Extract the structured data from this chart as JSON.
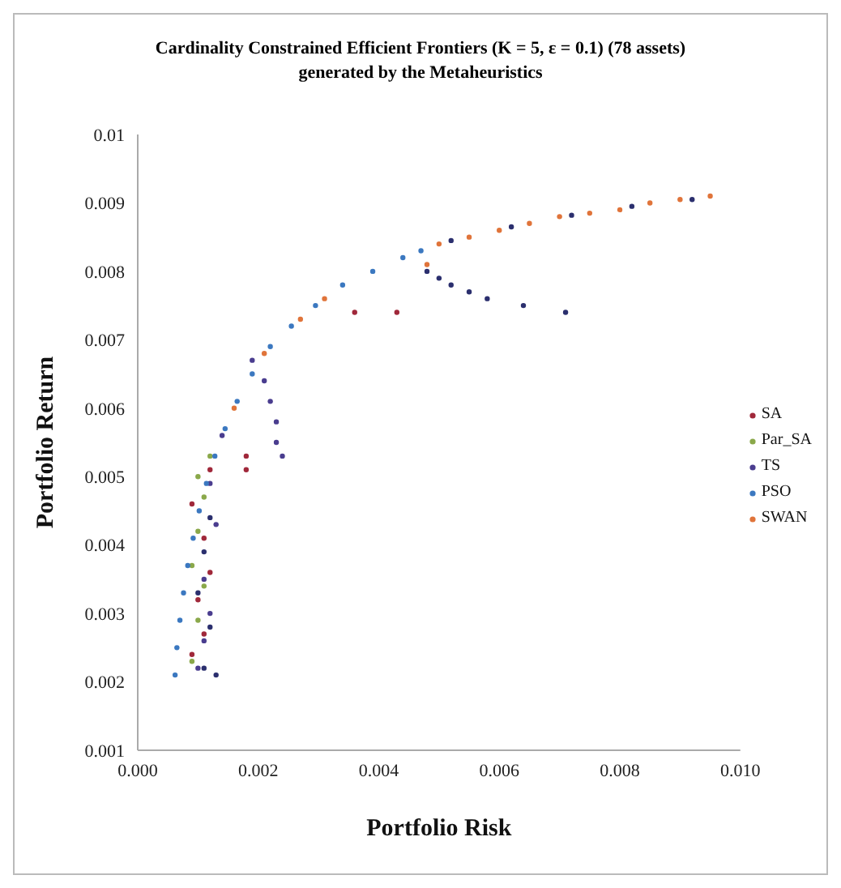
{
  "chart_data": {
    "type": "scatter",
    "title": "Cardinality Constrained Efficient Frontiers (K = 5, ε = 0.1) (78 assets) generated by the Metaheuristics",
    "xlabel": "Portfolio Risk",
    "ylabel": "Portfolio Return",
    "xlim": [
      0,
      0.01
    ],
    "xticks": [
      {
        "value": 0,
        "label": "0.000"
      },
      {
        "value": 0.002,
        "label": "0.002"
      },
      {
        "value": 0.004,
        "label": "0.004"
      },
      {
        "value": 0.006,
        "label": "0.006"
      },
      {
        "value": 0.008,
        "label": "0.008"
      },
      {
        "value": 0.01,
        "label": "0.010"
      }
    ],
    "ylim": [
      0.001,
      0.01
    ],
    "yticks": [
      0.001,
      0.002,
      0.003,
      0.004,
      0.005,
      0.006,
      0.007,
      0.008,
      0.009,
      0.01
    ],
    "grid": false,
    "legend": "right",
    "marker": "circle",
    "series": [
      {
        "color": "#2b2f6e",
        "x": [
          0.0048,
          0.005,
          0.0052,
          0.0055,
          0.0058,
          0.0064,
          0.0071,
          0.0052,
          0.0062,
          0.0072,
          0.0082,
          0.0092,
          0.0011,
          0.0012,
          0.001,
          0.0011,
          0.0012,
          0.0013
        ],
        "values": [
          0.008,
          0.0079,
          0.0078,
          0.0077,
          0.0076,
          0.0075,
          0.0074,
          0.00845,
          0.00865,
          0.00882,
          0.00895,
          0.00905,
          0.0022,
          0.0028,
          0.0033,
          0.0039,
          0.0044,
          0.0021
        ]
      },
      {
        "name": "SA",
        "color": "#a0283a",
        "x": [
          0.0036,
          0.0043,
          0.0018,
          0.0018,
          0.0009,
          0.0011,
          0.001,
          0.0012,
          0.0011,
          0.0009,
          0.0012
        ],
        "values": [
          0.0074,
          0.0074,
          0.0053,
          0.0051,
          0.0024,
          0.0027,
          0.0032,
          0.0036,
          0.0041,
          0.0046,
          0.0051
        ]
      },
      {
        "name": "Par_SA",
        "color": "#8aa84a",
        "x": [
          0.0009,
          0.001,
          0.0011,
          0.0009,
          0.001,
          0.0011,
          0.0012,
          0.001
        ],
        "values": [
          0.0023,
          0.0029,
          0.0034,
          0.0037,
          0.0042,
          0.0047,
          0.0053,
          0.005
        ]
      },
      {
        "name": "TS",
        "color": "#4a3d8f",
        "x": [
          0.0019,
          0.0021,
          0.0022,
          0.0023,
          0.0023,
          0.0024,
          0.001,
          0.0011,
          0.0012,
          0.0011,
          0.0013,
          0.0012,
          0.0014
        ],
        "values": [
          0.0067,
          0.0064,
          0.0061,
          0.0058,
          0.0055,
          0.0053,
          0.0022,
          0.0026,
          0.003,
          0.0035,
          0.0043,
          0.0049,
          0.0056
        ]
      },
      {
        "name": "PSO",
        "color": "#3b78c0",
        "x": [
          0.00062,
          0.00065,
          0.0007,
          0.00076,
          0.00083,
          0.00092,
          0.00102,
          0.00114,
          0.00128,
          0.00145,
          0.00165,
          0.0019,
          0.0022,
          0.00255,
          0.00295,
          0.0034,
          0.0039,
          0.0044,
          0.0047
        ],
        "values": [
          0.0021,
          0.0025,
          0.0029,
          0.0033,
          0.0037,
          0.0041,
          0.0045,
          0.0049,
          0.0053,
          0.0057,
          0.0061,
          0.0065,
          0.0069,
          0.0072,
          0.0075,
          0.0078,
          0.008,
          0.0082,
          0.0083
        ]
      },
      {
        "name": "SWAN",
        "color": "#e0743a",
        "x": [
          0.0016,
          0.0021,
          0.0027,
          0.0031,
          0.0048,
          0.005,
          0.0055,
          0.006,
          0.0065,
          0.007,
          0.0075,
          0.008,
          0.0085,
          0.009,
          0.0095
        ],
        "values": [
          0.006,
          0.0068,
          0.0073,
          0.0076,
          0.0081,
          0.0084,
          0.0085,
          0.0086,
          0.0087,
          0.0088,
          0.00885,
          0.0089,
          0.009,
          0.00905,
          0.0091
        ]
      }
    ]
  }
}
